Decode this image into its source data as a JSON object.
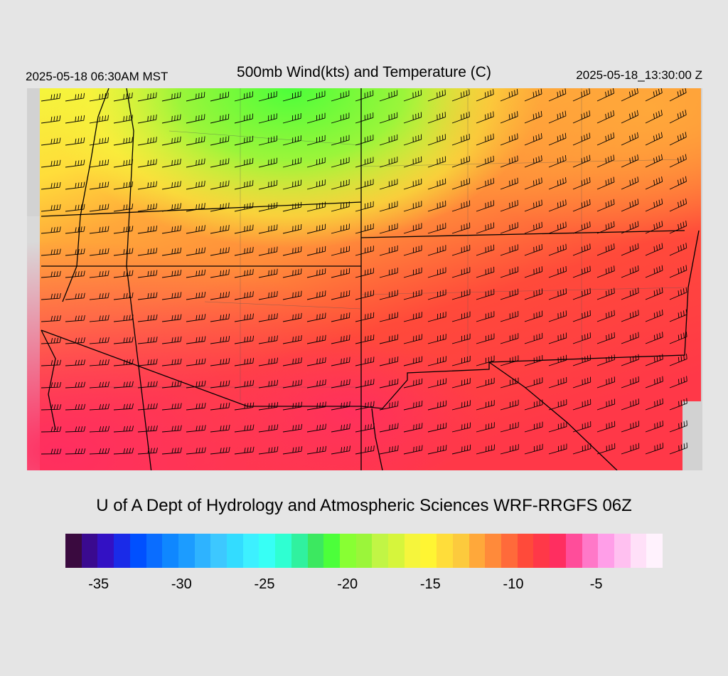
{
  "header": {
    "local_time": "2025-05-18 06:30AM MST",
    "title": "500mb Wind(kts) and Temperature (C)",
    "valid_time": "2025-05-18_13:30:00 Z"
  },
  "credit": "U of A Dept of Hydrology and Atmospheric Sciences WRF-RRGFS 06Z",
  "colorbar": {
    "colors": [
      "#3a0a3f",
      "#3a0a8f",
      "#3311c4",
      "#1a2be8",
      "#0050ff",
      "#0a6dff",
      "#0f87ff",
      "#1c9cff",
      "#2eb3ff",
      "#3dc8ff",
      "#33dcff",
      "#3df0ff",
      "#37fff5",
      "#2fffd2",
      "#30f19f",
      "#3ce860",
      "#4cff3a",
      "#88ff33",
      "#9bf53a",
      "#c1f545",
      "#d6f53c",
      "#f5f53c",
      "#fff533",
      "#ffdd3a",
      "#fcca3d",
      "#ffa83a",
      "#ff8a3a",
      "#ff6a3a",
      "#ff4a3a",
      "#ff3848",
      "#ff2e60",
      "#ff4d9a",
      "#ff78c8",
      "#ff9ee8",
      "#ffc0f0",
      "#ffe0f8",
      "#fff2fd"
    ],
    "ticks": [
      {
        "label": "-35",
        "value": -35
      },
      {
        "label": "-30",
        "value": -30
      },
      {
        "label": "-25",
        "value": -25
      },
      {
        "label": "-20",
        "value": -20
      },
      {
        "label": "-15",
        "value": -15
      },
      {
        "label": "-10",
        "value": -10
      },
      {
        "label": "-5",
        "value": -5
      }
    ],
    "range": [
      -37,
      -1
    ]
  }
}
